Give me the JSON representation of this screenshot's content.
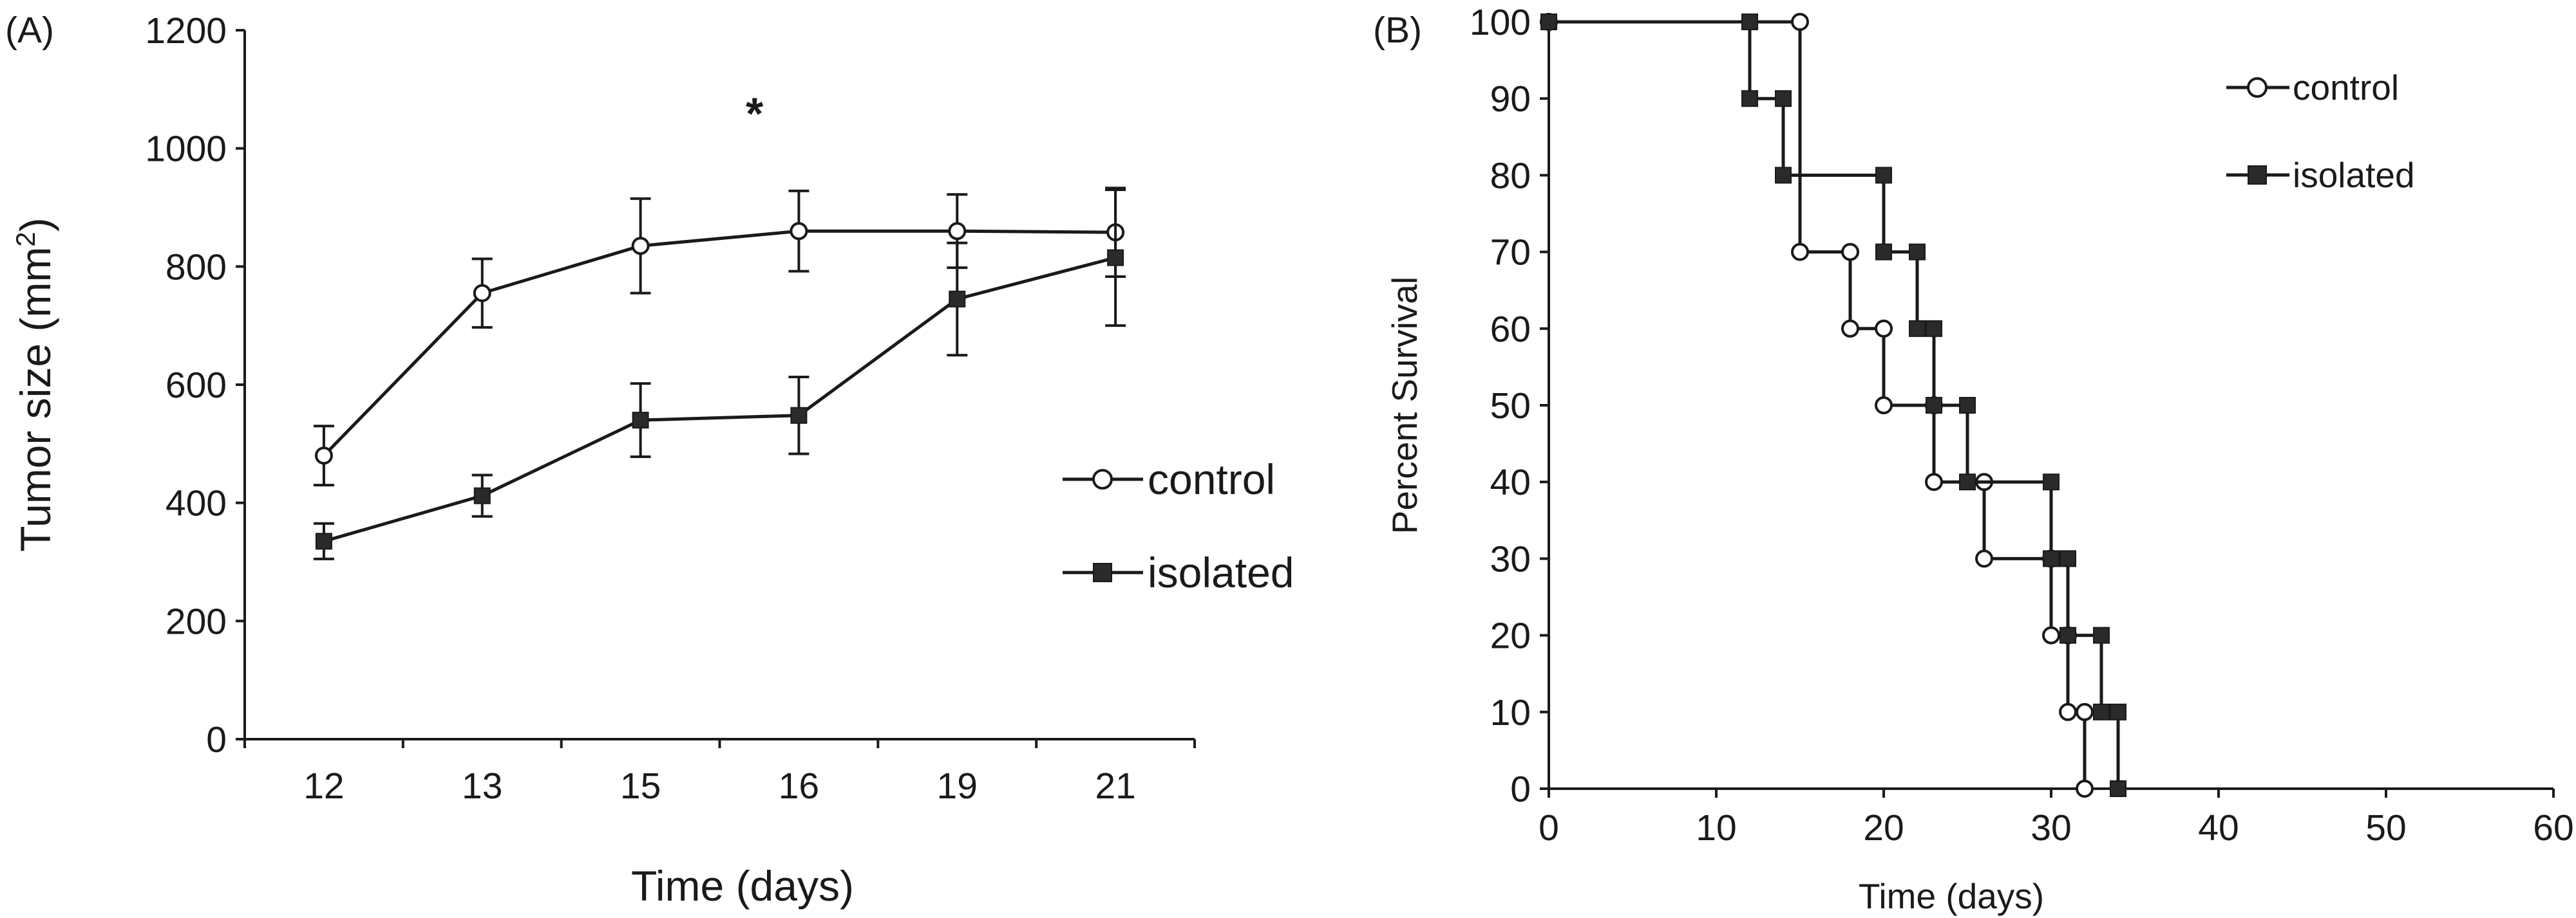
{
  "chart_data": [
    {
      "panel_label": "(A)",
      "type": "line",
      "xlabel": "Time (days)",
      "ylabel_main": "Tumor size (mm",
      "ylabel_sup": "2",
      "ylabel_close": ")",
      "categories": [
        "12",
        "13",
        "15",
        "16",
        "19",
        "21"
      ],
      "ylim": [
        0,
        1200
      ],
      "yticks": [
        0,
        200,
        400,
        600,
        800,
        1000,
        1200
      ],
      "annotation": {
        "text": "*",
        "near_category": "16",
        "y": 1070
      },
      "legend_position": "right",
      "series": [
        {
          "name": "control",
          "marker": "open-circle",
          "values": [
            480,
            755,
            835,
            860,
            860,
            858
          ],
          "errors": [
            50,
            58,
            80,
            68,
            62,
            75
          ]
        },
        {
          "name": "isolated",
          "marker": "filled-square",
          "values": [
            335,
            412,
            540,
            548,
            745,
            815
          ],
          "errors": [
            30,
            35,
            62,
            65,
            95,
            115
          ]
        }
      ]
    },
    {
      "panel_label": "(B)",
      "type": "line",
      "subtype": "step",
      "xlabel": "Time (days)",
      "ylabel": "Percent Survival",
      "xlim": [
        0,
        60
      ],
      "xticks": [
        0,
        10,
        20,
        30,
        40,
        50,
        60
      ],
      "ylim": [
        0,
        100
      ],
      "yticks": [
        0,
        10,
        20,
        30,
        40,
        50,
        60,
        70,
        80,
        90,
        100
      ],
      "legend_position": "top-right",
      "series": [
        {
          "name": "control",
          "marker": "open-circle",
          "x": [
            0,
            15,
            18,
            20,
            23,
            26,
            30,
            31,
            32
          ],
          "y": [
            100,
            70,
            60,
            50,
            40,
            30,
            20,
            10,
            0
          ]
        },
        {
          "name": "isolated",
          "marker": "filled-square",
          "x": [
            0,
            12,
            14,
            20,
            22,
            23,
            25,
            30,
            31,
            33,
            34
          ],
          "y": [
            100,
            90,
            80,
            70,
            60,
            50,
            40,
            30,
            20,
            10,
            0
          ]
        }
      ]
    }
  ]
}
